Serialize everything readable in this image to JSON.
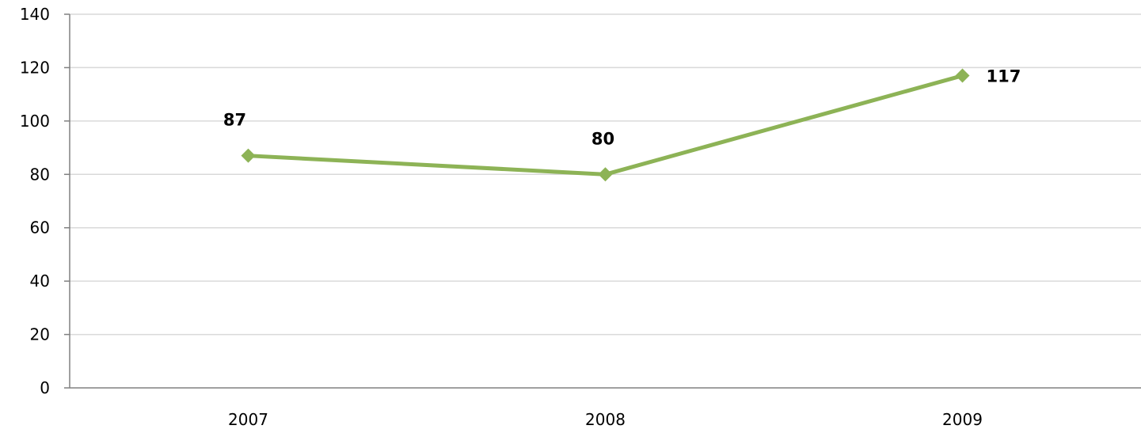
{
  "chart_data": {
    "type": "line",
    "title": "",
    "xlabel": "",
    "ylabel": "",
    "categories": [
      "2007",
      "2008",
      "2009"
    ],
    "series": [
      {
        "values": [
          87,
          80,
          117
        ],
        "color": "#8db356",
        "marker": "diamond",
        "data_labels": [
          "87",
          "80",
          "117"
        ]
      }
    ],
    "ylim": [
      0,
      140
    ],
    "yticks": [
      "0",
      "20",
      "40",
      "60",
      "80",
      "100",
      "120",
      "140"
    ],
    "grid": true,
    "legend": "none"
  }
}
